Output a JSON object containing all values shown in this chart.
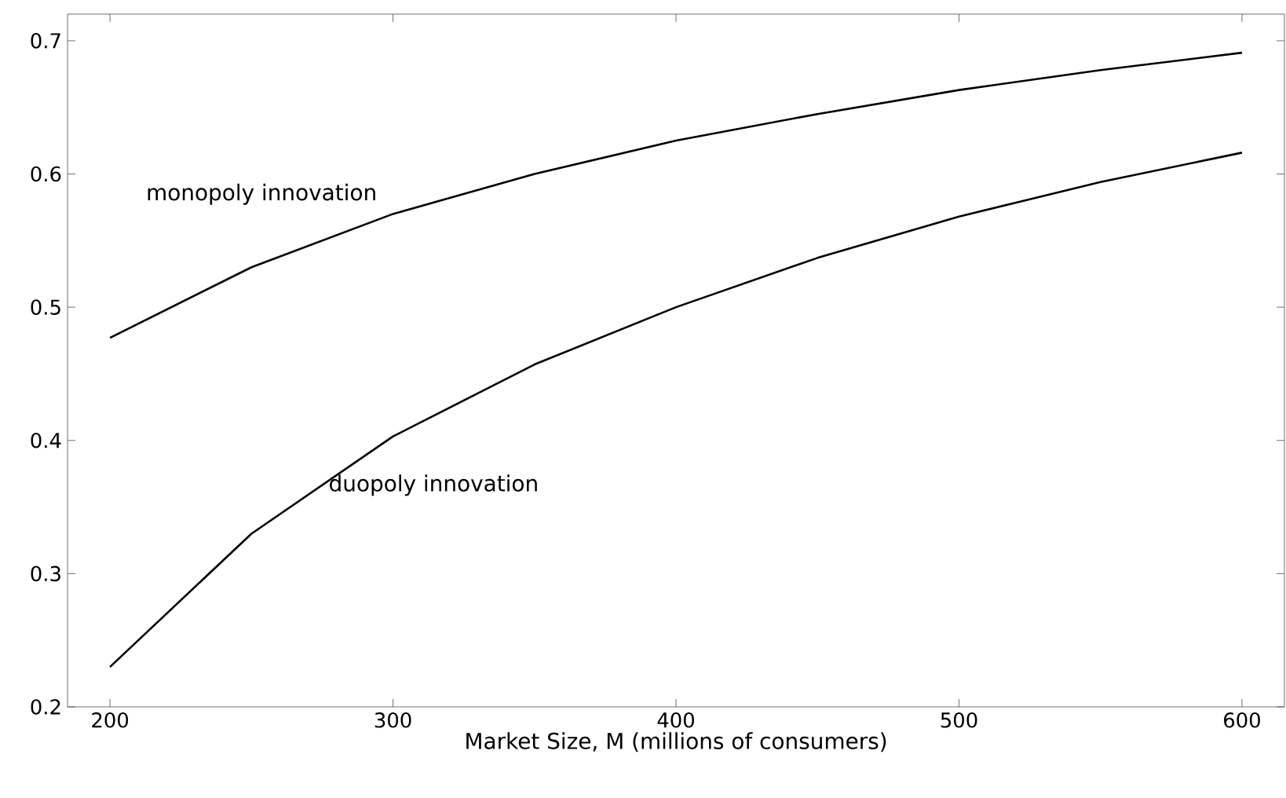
{
  "chart_data": {
    "type": "line",
    "xlabel": "Market Size, M (millions of consumers)",
    "x": [
      200,
      250,
      300,
      350,
      400,
      450,
      500,
      550,
      600
    ],
    "series": [
      {
        "color": "#000000",
        "values": [
          0.477,
          0.53,
          0.57,
          0.6,
          0.625,
          0.645,
          0.663,
          0.678,
          0.691
        ]
      },
      {
        "color": "#000000",
        "values": [
          0.23,
          0.33,
          0.403,
          0.457,
          0.5,
          0.537,
          0.568,
          0.594,
          0.616
        ]
      }
    ],
    "annotations": [
      "monopoly innovation",
      "duopoly innovation"
    ],
    "xlim": [
      185,
      615
    ],
    "ylim": [
      0.2,
      0.72
    ],
    "xticks": [
      200,
      300,
      400,
      500,
      600
    ],
    "yticks": [
      0.2,
      0.3,
      0.4,
      0.5,
      0.6,
      0.7
    ],
    "marker": "none",
    "line_style": "solid"
  }
}
